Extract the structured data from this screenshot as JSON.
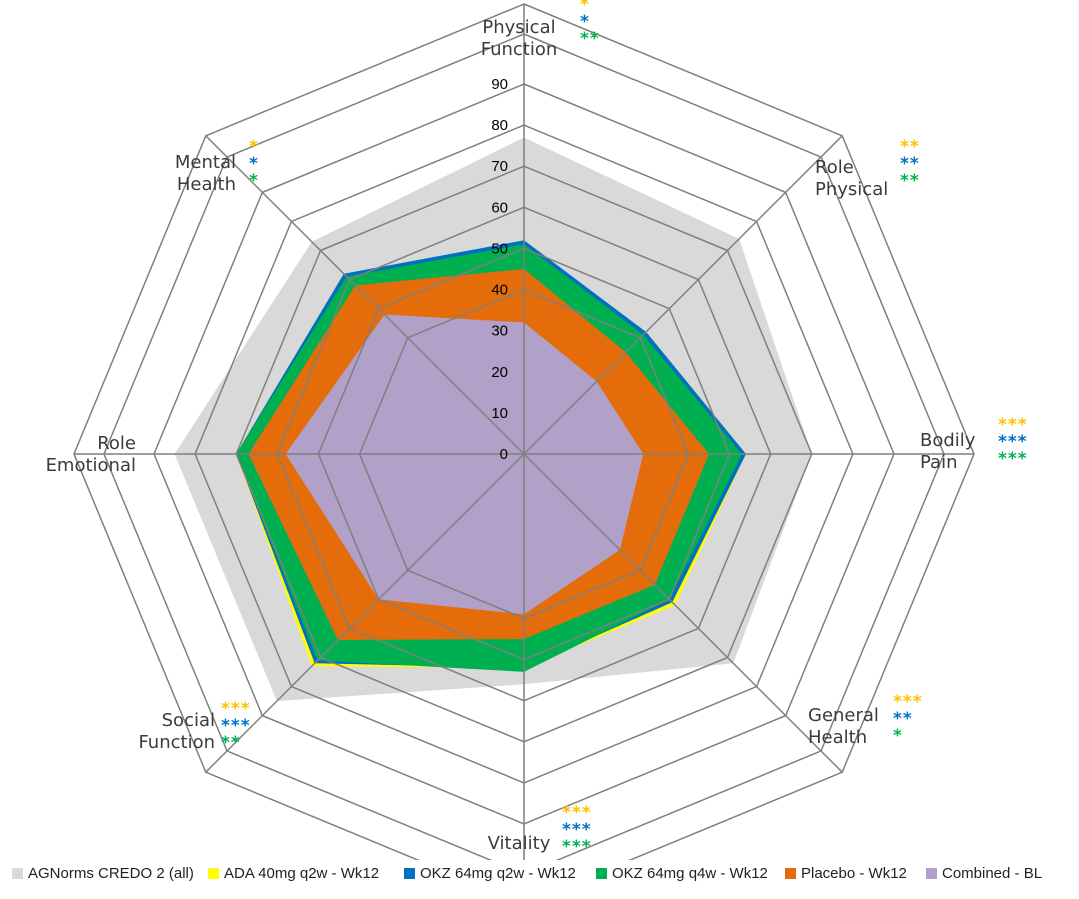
{
  "chart_data": {
    "type": "radar",
    "axes": [
      "Physical Function",
      "Role Physical",
      "Bodily Pain",
      "General Health",
      "Vitality",
      "Social Function",
      "Role Emotional",
      "Mental Health"
    ],
    "axis_labels": [
      [
        "Physical",
        "Function"
      ],
      [
        "Role",
        "Physical"
      ],
      [
        "Bodily",
        "Pain"
      ],
      [
        "General",
        "Health"
      ],
      [
        "Vitality"
      ],
      [
        "Social",
        "Function"
      ],
      [
        "Role",
        "Emotional"
      ],
      [
        "Mental",
        "Health"
      ]
    ],
    "rlim": [
      0,
      90
    ],
    "ticks": [
      "0",
      "10",
      "20",
      "30",
      "40",
      "50",
      "60",
      "70",
      "80",
      "90"
    ],
    "grid": true,
    "legend_position": "bottom",
    "series": [
      {
        "name": "AGNorms CREDO 2 (all)",
        "color": "#d9d9d9",
        "values": [
          77,
          74,
          70,
          72,
          56,
          85,
          85,
          73
        ]
      },
      {
        "name": "ADA 40mg q2w - Wk12",
        "color": "#ffff00",
        "values": [
          50,
          42,
          54,
          52,
          52,
          73,
          70,
          62
        ]
      },
      {
        "name": "OKZ 64mg q2w - Wk12",
        "color": "#0070c0",
        "values": [
          52,
          42,
          54,
          51,
          52,
          72,
          70,
          62
        ]
      },
      {
        "name": "OKZ 64mg q4w - Wk12",
        "color": "#00b050",
        "values": [
          51,
          41,
          53,
          50,
          53,
          71,
          70,
          61
        ]
      },
      {
        "name": "Placebo - Wk12",
        "color": "#e46c0a",
        "values": [
          45,
          35,
          45,
          45,
          45,
          64,
          67,
          58
        ]
      },
      {
        "name": "Combined - BL",
        "color": "#b1a0c7",
        "values": [
          32,
          25,
          29,
          33,
          39,
          50,
          58,
          48
        ]
      }
    ],
    "significance": [
      {
        "axis": "Physical Function",
        "marks": [
          "*",
          "*",
          "**"
        ]
      },
      {
        "axis": "Role Physical",
        "marks": [
          "**",
          "**",
          "**"
        ]
      },
      {
        "axis": "Bodily Pain",
        "marks": [
          "***",
          "***",
          "***"
        ]
      },
      {
        "axis": "General Health",
        "marks": [
          "***",
          "**",
          "*"
        ]
      },
      {
        "axis": "Vitality",
        "marks": [
          "***",
          "***",
          "***"
        ]
      },
      {
        "axis": "Social Function",
        "marks": [
          "***",
          "***",
          "**"
        ]
      },
      {
        "axis": "Role Emotional",
        "marks": []
      },
      {
        "axis": "Mental Health",
        "marks": [
          "*",
          "*",
          "*"
        ]
      }
    ],
    "significance_colors": [
      "#ffc000",
      "#0070c0",
      "#00b050"
    ]
  }
}
